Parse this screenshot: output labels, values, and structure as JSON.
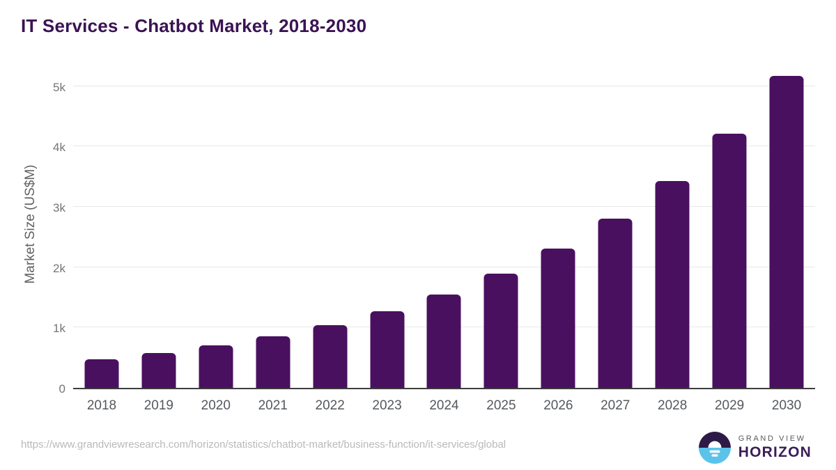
{
  "title": "IT Services - Chatbot Market, 2018-2030",
  "chart_data": {
    "type": "bar",
    "title": "IT Services - Chatbot Market, 2018-2030",
    "categories": [
      "2018",
      "2019",
      "2020",
      "2021",
      "2022",
      "2023",
      "2024",
      "2025",
      "2026",
      "2027",
      "2028",
      "2029",
      "2030"
    ],
    "values": [
      475,
      575,
      700,
      850,
      1035,
      1265,
      1540,
      1890,
      2310,
      2805,
      3430,
      4210,
      5170
    ],
    "xlabel": "",
    "ylabel": "Market Size (US$M)",
    "ylim": [
      0,
      5350
    ],
    "yticks": [
      {
        "value": 0,
        "label": "0"
      },
      {
        "value": 1000,
        "label": "1k"
      },
      {
        "value": 2000,
        "label": "2k"
      },
      {
        "value": 3000,
        "label": "3k"
      },
      {
        "value": 4000,
        "label": "4k"
      },
      {
        "value": 5000,
        "label": "5k"
      }
    ],
    "grid": true,
    "legend": "none",
    "bar_color": "#4a1060"
  },
  "footer": {
    "source_url": "https://www.grandviewresearch.com/horizon/statistics/chatbot-market/business-function/it-services/global",
    "logo": {
      "company": "GRAND VIEW",
      "product": "HORIZON",
      "icon": "sunrise-horizon-icon"
    }
  },
  "colors": {
    "bar": "#4a1060",
    "title_text": "#3a1353",
    "axis_line": "#3d3d3d",
    "gridline": "#e7e7e7",
    "x_tick_text": "#54585d",
    "y_tick_text": "#757575",
    "url_text": "#b9b9b9",
    "logo_dark": "#2e1a47",
    "logo_blue": "#5bc3ea"
  }
}
